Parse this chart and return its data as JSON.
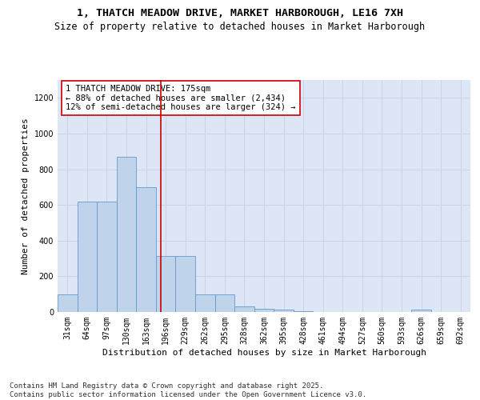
{
  "title_line1": "1, THATCH MEADOW DRIVE, MARKET HARBOROUGH, LE16 7XH",
  "title_line2": "Size of property relative to detached houses in Market Harborough",
  "xlabel": "Distribution of detached houses by size in Market Harborough",
  "ylabel": "Number of detached properties",
  "bar_labels": [
    "31sqm",
    "64sqm",
    "97sqm",
    "130sqm",
    "163sqm",
    "196sqm",
    "229sqm",
    "262sqm",
    "295sqm",
    "328sqm",
    "362sqm",
    "395sqm",
    "428sqm",
    "461sqm",
    "494sqm",
    "527sqm",
    "560sqm",
    "593sqm",
    "626sqm",
    "659sqm",
    "692sqm"
  ],
  "bar_values": [
    100,
    620,
    620,
    870,
    700,
    315,
    315,
    100,
    100,
    30,
    20,
    15,
    5,
    0,
    0,
    0,
    0,
    0,
    15,
    0,
    0
  ],
  "bar_color": "#bfd3ea",
  "bar_edge_color": "#6699cc",
  "annotation_box_text": "1 THATCH MEADOW DRIVE: 175sqm\n← 88% of detached houses are smaller (2,434)\n12% of semi-detached houses are larger (324) →",
  "vline_x": 4.75,
  "vline_color": "#cc0000",
  "ylim": [
    0,
    1300
  ],
  "yticks": [
    0,
    200,
    400,
    600,
    800,
    1000,
    1200
  ],
  "grid_color": "#c8d4e8",
  "bg_color": "#dce6f5",
  "footnote": "Contains HM Land Registry data © Crown copyright and database right 2025.\nContains public sector information licensed under the Open Government Licence v3.0.",
  "title_fontsize": 9.5,
  "subtitle_fontsize": 8.5,
  "annotation_fontsize": 7.5,
  "ylabel_fontsize": 8,
  "xlabel_fontsize": 8,
  "footnote_fontsize": 6.5,
  "tick_fontsize": 7
}
